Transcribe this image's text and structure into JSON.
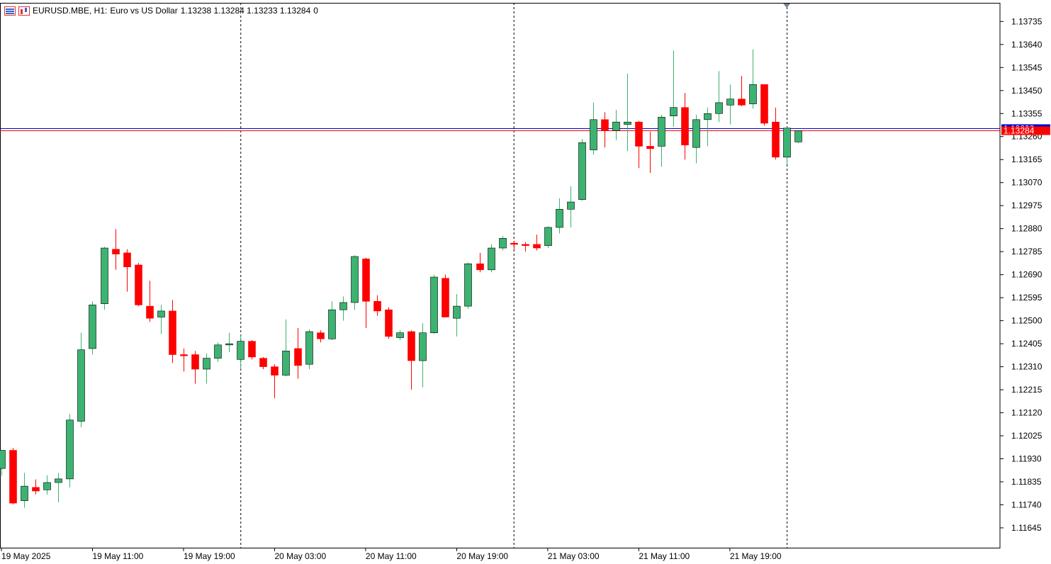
{
  "header": {
    "symbol": "EURUSD.MBE, H1:",
    "description": "Euro vs US Dollar",
    "ohlc": "1.13238 1.13284 1.13233 1.13284",
    "extra": "0",
    "icons": [
      "chart-menu-icon",
      "chart-bars-icon"
    ]
  },
  "colors": {
    "bull": "#3cb371",
    "bear": "#ff0000",
    "outline": "#000000",
    "bid_line": "#ff0000",
    "ask_line": "#0000cd",
    "grid_separator": "#000000",
    "background": "#ffffff"
  },
  "price_labels": {
    "bid": "1.13284",
    "ask": "1.13293"
  },
  "chart_data": {
    "type": "candlestick",
    "title": "",
    "xlabel": "",
    "ylabel": "",
    "ylim": [
      1.11563,
      1.13812
    ],
    "y_ticks": [
      "1.13735",
      "1.13640",
      "1.13545",
      "1.13450",
      "1.13355",
      "1.13260",
      "1.13165",
      "1.13070",
      "1.12975",
      "1.12880",
      "1.12785",
      "1.12690",
      "1.12595",
      "1.12500",
      "1.12405",
      "1.12310",
      "1.12215",
      "1.12120",
      "1.12025",
      "1.11930",
      "1.11835",
      "1.11740",
      "1.11645"
    ],
    "x_ticks": [
      {
        "label": "19 May 2025",
        "index": 0
      },
      {
        "label": "19 May 11:00",
        "index": 8
      },
      {
        "label": "19 May 19:00",
        "index": 16
      },
      {
        "label": "20 May 03:00",
        "index": 24
      },
      {
        "label": "20 May 11:00",
        "index": 32
      },
      {
        "label": "20 May 19:00",
        "index": 40
      },
      {
        "label": "21 May 03:00",
        "index": 48
      },
      {
        "label": "21 May 11:00",
        "index": 56
      },
      {
        "label": "21 May 19:00",
        "index": 64
      }
    ],
    "day_separators": [
      21,
      45,
      69
    ],
    "bid": 1.13284,
    "ask": 1.13293,
    "candles": [
      {
        "o": 1.1189,
        "h": 1.1196,
        "l": 1.1186,
        "c": 1.11965
      },
      {
        "o": 1.11965,
        "h": 1.11975,
        "l": 1.11742,
        "c": 1.11747
      },
      {
        "o": 1.11757,
        "h": 1.11872,
        "l": 1.11728,
        "c": 1.11817
      },
      {
        "o": 1.11812,
        "h": 1.11845,
        "l": 1.11783,
        "c": 1.11797
      },
      {
        "o": 1.11802,
        "h": 1.11862,
        "l": 1.11782,
        "c": 1.11832
      },
      {
        "o": 1.11832,
        "h": 1.11872,
        "l": 1.1175,
        "c": 1.11847
      },
      {
        "o": 1.11847,
        "h": 1.12115,
        "l": 1.11812,
        "c": 1.1209
      },
      {
        "o": 1.12085,
        "h": 1.1245,
        "l": 1.1206,
        "c": 1.1238
      },
      {
        "o": 1.12385,
        "h": 1.1258,
        "l": 1.1236,
        "c": 1.12565
      },
      {
        "o": 1.1257,
        "h": 1.12805,
        "l": 1.12545,
        "c": 1.128
      },
      {
        "o": 1.12795,
        "h": 1.12878,
        "l": 1.1271,
        "c": 1.12775
      },
      {
        "o": 1.1278,
        "h": 1.12795,
        "l": 1.1262,
        "c": 1.12722
      },
      {
        "o": 1.1273,
        "h": 1.12738,
        "l": 1.1256,
        "c": 1.12565
      },
      {
        "o": 1.1256,
        "h": 1.12665,
        "l": 1.12495,
        "c": 1.1251
      },
      {
        "o": 1.12515,
        "h": 1.12565,
        "l": 1.12445,
        "c": 1.1254
      },
      {
        "o": 1.1254,
        "h": 1.12585,
        "l": 1.12325,
        "c": 1.1236
      },
      {
        "o": 1.1236,
        "h": 1.12385,
        "l": 1.1229,
        "c": 1.12355
      },
      {
        "o": 1.1236,
        "h": 1.12375,
        "l": 1.1224,
        "c": 1.123
      },
      {
        "o": 1.123,
        "h": 1.12365,
        "l": 1.1224,
        "c": 1.12345
      },
      {
        "o": 1.12345,
        "h": 1.1241,
        "l": 1.1233,
        "c": 1.124
      },
      {
        "o": 1.124,
        "h": 1.1245,
        "l": 1.1237,
        "c": 1.12405
      },
      {
        "o": 1.1234,
        "h": 1.1244,
        "l": 1.123,
        "c": 1.12415
      },
      {
        "o": 1.12415,
        "h": 1.1242,
        "l": 1.1234,
        "c": 1.1235
      },
      {
        "o": 1.12345,
        "h": 1.1235,
        "l": 1.123,
        "c": 1.1231
      },
      {
        "o": 1.1231,
        "h": 1.1232,
        "l": 1.1218,
        "c": 1.12275
      },
      {
        "o": 1.12275,
        "h": 1.12505,
        "l": 1.1227,
        "c": 1.12375
      },
      {
        "o": 1.12385,
        "h": 1.1247,
        "l": 1.1226,
        "c": 1.12315
      },
      {
        "o": 1.1232,
        "h": 1.12465,
        "l": 1.123,
        "c": 1.12455
      },
      {
        "o": 1.1245,
        "h": 1.1246,
        "l": 1.1241,
        "c": 1.12425
      },
      {
        "o": 1.12425,
        "h": 1.1258,
        "l": 1.1242,
        "c": 1.12545
      },
      {
        "o": 1.12545,
        "h": 1.126,
        "l": 1.125,
        "c": 1.12575
      },
      {
        "o": 1.12575,
        "h": 1.1277,
        "l": 1.12545,
        "c": 1.12765
      },
      {
        "o": 1.12755,
        "h": 1.1276,
        "l": 1.1247,
        "c": 1.1258
      },
      {
        "o": 1.1258,
        "h": 1.12605,
        "l": 1.1252,
        "c": 1.1254
      },
      {
        "o": 1.12545,
        "h": 1.12555,
        "l": 1.12425,
        "c": 1.12435
      },
      {
        "o": 1.1243,
        "h": 1.1246,
        "l": 1.1242,
        "c": 1.1245
      },
      {
        "o": 1.12455,
        "h": 1.1246,
        "l": 1.12215,
        "c": 1.12335
      },
      {
        "o": 1.12335,
        "h": 1.1249,
        "l": 1.12225,
        "c": 1.1245
      },
      {
        "o": 1.1245,
        "h": 1.1269,
        "l": 1.12445,
        "c": 1.1268
      },
      {
        "o": 1.12675,
        "h": 1.1269,
        "l": 1.12515,
        "c": 1.12515
      },
      {
        "o": 1.1251,
        "h": 1.1261,
        "l": 1.12435,
        "c": 1.1256
      },
      {
        "o": 1.1256,
        "h": 1.1274,
        "l": 1.1255,
        "c": 1.12735
      },
      {
        "o": 1.12735,
        "h": 1.1278,
        "l": 1.127,
        "c": 1.1271
      },
      {
        "o": 1.1271,
        "h": 1.12815,
        "l": 1.127,
        "c": 1.128
      },
      {
        "o": 1.128,
        "h": 1.1285,
        "l": 1.1279,
        "c": 1.1284
      },
      {
        "o": 1.1282,
        "h": 1.1283,
        "l": 1.12795,
        "c": 1.12815
      },
      {
        "o": 1.12815,
        "h": 1.12825,
        "l": 1.12785,
        "c": 1.1281
      },
      {
        "o": 1.12815,
        "h": 1.12855,
        "l": 1.1279,
        "c": 1.128
      },
      {
        "o": 1.1281,
        "h": 1.1289,
        "l": 1.128,
        "c": 1.12885
      },
      {
        "o": 1.12885,
        "h": 1.13005,
        "l": 1.1286,
        "c": 1.1296
      },
      {
        "o": 1.1296,
        "h": 1.13055,
        "l": 1.12885,
        "c": 1.1299
      },
      {
        "o": 1.13,
        "h": 1.1325,
        "l": 1.12995,
        "c": 1.13235
      },
      {
        "o": 1.13205,
        "h": 1.134,
        "l": 1.13185,
        "c": 1.1333
      },
      {
        "o": 1.1333,
        "h": 1.1336,
        "l": 1.13215,
        "c": 1.13285
      },
      {
        "o": 1.13285,
        "h": 1.1337,
        "l": 1.13245,
        "c": 1.1332
      },
      {
        "o": 1.1331,
        "h": 1.1352,
        "l": 1.132,
        "c": 1.1332
      },
      {
        "o": 1.1332,
        "h": 1.13325,
        "l": 1.1313,
        "c": 1.1322
      },
      {
        "o": 1.1322,
        "h": 1.1328,
        "l": 1.1311,
        "c": 1.1321
      },
      {
        "o": 1.1322,
        "h": 1.1335,
        "l": 1.13135,
        "c": 1.1334
      },
      {
        "o": 1.13345,
        "h": 1.13615,
        "l": 1.133,
        "c": 1.1338
      },
      {
        "o": 1.1338,
        "h": 1.1344,
        "l": 1.13165,
        "c": 1.13225
      },
      {
        "o": 1.13215,
        "h": 1.1335,
        "l": 1.1315,
        "c": 1.1333
      },
      {
        "o": 1.1333,
        "h": 1.1338,
        "l": 1.1322,
        "c": 1.13355
      },
      {
        "o": 1.13355,
        "h": 1.1353,
        "l": 1.1332,
        "c": 1.134
      },
      {
        "o": 1.1339,
        "h": 1.13475,
        "l": 1.1331,
        "c": 1.13415
      },
      {
        "o": 1.13415,
        "h": 1.1351,
        "l": 1.13385,
        "c": 1.1339
      },
      {
        "o": 1.13395,
        "h": 1.1362,
        "l": 1.13375,
        "c": 1.13475
      },
      {
        "o": 1.13475,
        "h": 1.13475,
        "l": 1.13305,
        "c": 1.13315
      },
      {
        "o": 1.1332,
        "h": 1.1338,
        "l": 1.13165,
        "c": 1.13175
      },
      {
        "o": 1.13175,
        "h": 1.133,
        "l": 1.13145,
        "c": 1.13295
      },
      {
        "o": 1.13238,
        "h": 1.13284,
        "l": 1.13233,
        "c": 1.13284
      }
    ]
  }
}
